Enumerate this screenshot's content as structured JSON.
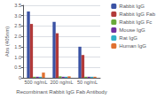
{
  "chart_data": {
    "type": "bar",
    "categories": [
      "500 ng/mL",
      "200 ng/mL",
      "50 ng/mL"
    ],
    "series": [
      {
        "name": "Rabbit IgG",
        "color": "#3a52a4",
        "values": [
          3.2,
          2.7,
          1.5
        ]
      },
      {
        "name": "Rabbit IgG Fab",
        "color": "#b23a3a",
        "values": [
          2.6,
          2.15,
          1.1
        ]
      },
      {
        "name": "Rabbit IgG Fc",
        "color": "#6aaa3a",
        "values": [
          0.05,
          0.07,
          0.05
        ]
      },
      {
        "name": "Mouse IgG",
        "color": "#7030a0",
        "values": [
          0.05,
          0.05,
          0.05
        ]
      },
      {
        "name": "Rat IgG",
        "color": "#31b0c8",
        "values": [
          0.05,
          0.05,
          0.05
        ]
      },
      {
        "name": "Human IgG",
        "color": "#e07030",
        "values": [
          0.25,
          0.07,
          0.05
        ]
      }
    ],
    "xlabel": "Recombinant Rabbit IgG Fab Antibody",
    "ylabel": "Abs (405nm)",
    "ylim": [
      0,
      3.5
    ],
    "yticks": [
      0,
      0.5,
      {
        "value": 1,
        "label": "1.0"
      },
      1.5,
      {
        "value": 2,
        "label": "2.0"
      },
      2.5,
      {
        "value": 3,
        "label": "3.0"
      },
      3.5
    ],
    "grid": true,
    "legend": "right"
  }
}
